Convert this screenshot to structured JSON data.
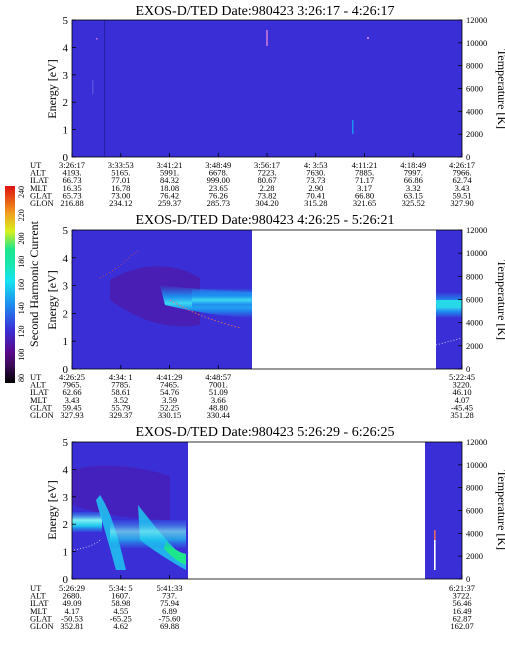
{
  "chart_data": [
    {
      "type": "heatmap",
      "title": "EXOS-D/TED   Date:980423  3:26:17 - 4:26:17",
      "ylabel": "Energy [eV]",
      "y2label": "Temperature [K]",
      "ylim": [
        0,
        5
      ],
      "y2lim": [
        0,
        12000
      ],
      "yticks": [
        "0",
        "1",
        "2",
        "3",
        "4",
        "5"
      ],
      "y2ticks": [
        "0",
        "2000",
        "4000",
        "6000",
        "8000",
        "10000",
        "12000"
      ],
      "data_extent": [
        0,
        1
      ],
      "background_color": "#3a2fd6",
      "table": {
        "row_labels": [
          "UT",
          "ALT",
          "ILAT",
          "MLT",
          "GLAT",
          "GLON"
        ],
        "columns": [
          {
            "pos": 0.0,
            "values": [
              "3:26:17",
              "4193.",
              "66.73",
              "16.35",
              "65.73",
              "216.88"
            ]
          },
          {
            "pos": 0.125,
            "values": [
              "3:33:53",
              "5165.",
              "77.01",
              "16.78",
              "73.00",
              "234.12"
            ]
          },
          {
            "pos": 0.25,
            "values": [
              "3:41:21",
              "5991.",
              "84.32",
              "18.08",
              "76.42",
              "259.37"
            ]
          },
          {
            "pos": 0.375,
            "values": [
              "3:48:49",
              "6678.",
              "999.00",
              "23.65",
              "76.26",
              "285.73"
            ]
          },
          {
            "pos": 0.5,
            "values": [
              "3:56:17",
              "7223.",
              "80.67",
              "2.28",
              "73.82",
              "304.20"
            ]
          },
          {
            "pos": 0.625,
            "values": [
              "4:  3:53",
              "7630.",
              "73.73",
              "2.90",
              "70.41",
              "315.28"
            ]
          },
          {
            "pos": 0.75,
            "values": [
              "4:11:21",
              "7885.",
              "71.17",
              "3.17",
              "66.80",
              "321.65"
            ]
          },
          {
            "pos": 0.875,
            "values": [
              "4:18:49",
              "7997.",
              "66.86",
              "3.32",
              "63.15",
              "325.52"
            ]
          },
          {
            "pos": 1.0,
            "values": [
              "4:26:17",
              "7966.",
              "62.74",
              "3.43",
              "59.51",
              "327.90"
            ]
          }
        ]
      }
    },
    {
      "type": "heatmap",
      "title": "EXOS-D/TED   Date:980423  4:26:25 - 5:26:21",
      "ylabel": "Energy [eV]",
      "y2label": "Temperature [K]",
      "ylim": [
        0,
        5
      ],
      "y2lim": [
        0,
        12000
      ],
      "yticks": [
        "0",
        "1",
        "2",
        "3",
        "4",
        "5"
      ],
      "y2ticks": [
        "0",
        "2000",
        "4000",
        "6000",
        "8000",
        "10000",
        "12000"
      ],
      "data_extent": [
        0,
        0.47
      ],
      "data_extent_end": [
        0.95,
        1
      ],
      "background_color": "#3a2fd6",
      "colorbar": {
        "label": "Second Harmonic Current",
        "ticks": [
          "80",
          "100",
          "120",
          "140",
          "160",
          "180",
          "200",
          "220",
          "240"
        ],
        "colors": [
          "#000000",
          "#5a0a8c",
          "#3a2fd6",
          "#1e8ef0",
          "#16e4f0",
          "#1ee68c",
          "#d8f01e",
          "#f0a01e",
          "#e01010"
        ]
      },
      "table": {
        "row_labels": [
          "UT",
          "ALT",
          "ILAT",
          "MLT",
          "GLAT",
          "GLON"
        ],
        "columns": [
          {
            "pos": 0.0,
            "values": [
              "4:26:25",
              "7965.",
              "62.66",
              "3.43",
              "59.45",
              "327.93"
            ]
          },
          {
            "pos": 0.125,
            "values": [
              "4:34:  1",
              "7785.",
              "58.61",
              "3.52",
              "55.79",
              "329.37"
            ]
          },
          {
            "pos": 0.25,
            "values": [
              "4:41:29",
              "7465.",
              "54.76",
              "3.59",
              "52.25",
              "330.15"
            ]
          },
          {
            "pos": 0.375,
            "values": [
              "4:48:57",
              "7001.",
              "51.09",
              "3.66",
              "48.80",
              "330.44"
            ]
          },
          {
            "pos": 1.0,
            "values": [
              "5:22:45",
              "3220.",
              "46.10",
              "4.07",
              "-45.45",
              "351.28"
            ]
          }
        ]
      }
    },
    {
      "type": "heatmap",
      "title": "EXOS-D/TED   Date:980423  5:26:29 - 6:26:25",
      "ylabel": "Energy [eV]",
      "y2label": "Temperature [K]",
      "ylim": [
        0,
        5
      ],
      "y2lim": [
        0,
        12000
      ],
      "yticks": [
        "0",
        "1",
        "2",
        "3",
        "4",
        "5"
      ],
      "y2ticks": [
        "0",
        "2000",
        "4000",
        "6000",
        "8000",
        "10000",
        "12000"
      ],
      "data_extent": [
        0,
        0.3
      ],
      "data_extent_end": [
        0.9,
        1
      ],
      "background_color": "#3a2fd6",
      "table": {
        "row_labels": [
          "UT",
          "ALT",
          "ILAT",
          "MLT",
          "GLAT",
          "GLON"
        ],
        "columns": [
          {
            "pos": 0.0,
            "values": [
              "5:26:29",
              "2680.",
              "49.09",
              "4.17",
              "-50.53",
              "352.81"
            ]
          },
          {
            "pos": 0.125,
            "values": [
              "5:34:  5",
              "1607.",
              "58.98",
              "4.55",
              "-65.25",
              "4.62"
            ]
          },
          {
            "pos": 0.25,
            "values": [
              "5:41:33",
              "737.",
              "75.94",
              "6.89",
              "-75.60",
              "69.88"
            ]
          },
          {
            "pos": 1.0,
            "values": [
              "6:21:37",
              "3722.",
              "56.46",
              "16.49",
              "62.87",
              "162.07"
            ]
          }
        ]
      }
    }
  ]
}
